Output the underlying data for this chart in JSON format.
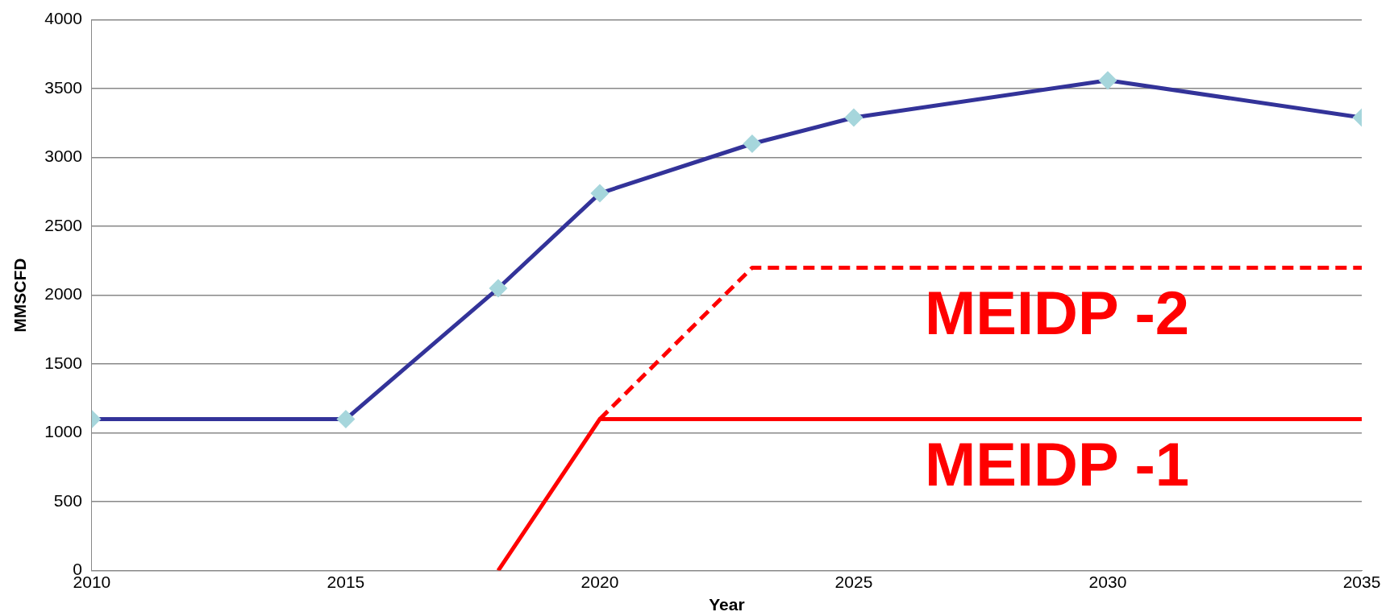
{
  "chart_data": {
    "type": "line",
    "xlabel": "Year",
    "ylabel": "MMSCFD",
    "xlim": [
      2010,
      2035
    ],
    "xticks": [
      2010,
      2015,
      2020,
      2025,
      2030,
      2035
    ],
    "ylim": [
      0,
      4000
    ],
    "yticks": [
      0,
      500,
      1000,
      1500,
      2000,
      2500,
      3000,
      3500,
      4000
    ],
    "grid": "y",
    "legend": false,
    "series": [
      {
        "color": "#333399",
        "x": [
          2010,
          2015,
          2018,
          2020,
          2023,
          2025,
          2030,
          2035
        ],
        "values": [
          1100,
          1100,
          2050,
          2740,
          3100,
          3290,
          3560,
          3290
        ],
        "marker": "diamond",
        "line_style": "solid"
      },
      {
        "name": "MEIDP -1",
        "color": "#ff0000",
        "x": [
          2018,
          2020,
          2023,
          2025,
          2030,
          2035
        ],
        "values": [
          0,
          1100,
          1100,
          1100,
          1100,
          1100
        ],
        "marker": "none",
        "line_style": "solid"
      },
      {
        "name": "MEIDP -2",
        "color": "#ff0000",
        "x": [
          2020,
          2023,
          2025,
          2030,
          2035
        ],
        "values": [
          1100,
          2200,
          2200,
          2200,
          2200
        ],
        "marker": "none",
        "line_style": "dashed"
      }
    ]
  }
}
